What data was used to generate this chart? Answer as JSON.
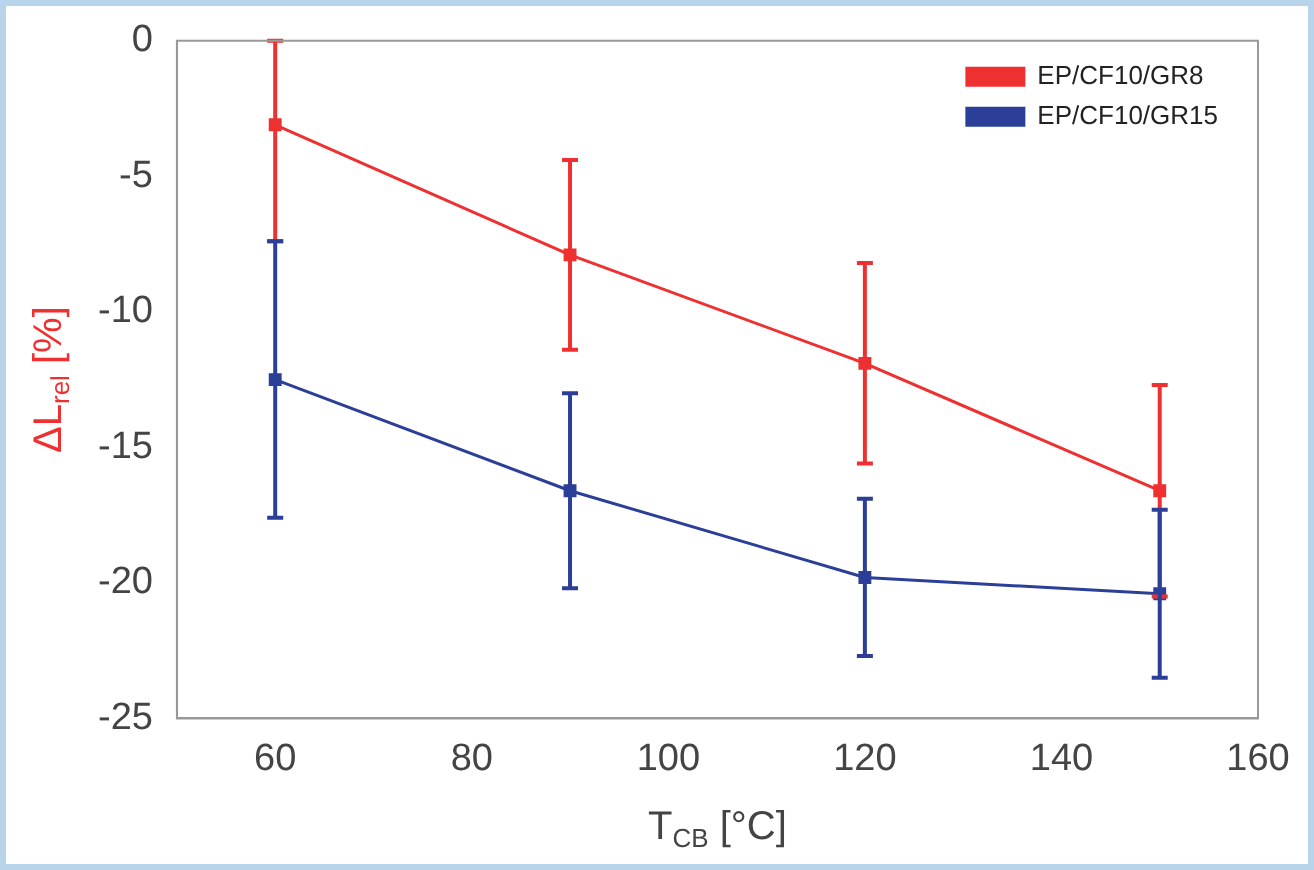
{
  "chart_data": {
    "type": "line",
    "xlabel": "T$_{CB}$ [°C]",
    "ylabel": "ΔL$_{rel}$ [%]",
    "x": [
      60,
      90,
      120,
      150
    ],
    "series": [
      {
        "name": "EP/CF10/GR8",
        "color": "#ee3030",
        "values": [
          -3.1,
          -7.9,
          -11.9,
          -16.6
        ],
        "errors": [
          [
            -7.4,
            0
          ],
          3.5,
          3.7,
          3.9
        ]
      },
      {
        "name": "EP/CF10/GR15",
        "color": "#2b3f99",
        "values": [
          -12.5,
          -16.6,
          -19.8,
          -20.4
        ],
        "errors": [
          5.1,
          3.6,
          2.9,
          3.1
        ]
      }
    ],
    "xlim": [
      50,
      160
    ],
    "xticks": [
      60,
      80,
      100,
      120,
      140,
      160
    ],
    "ylim": [
      -25,
      0
    ],
    "yticks": [
      -25,
      -20,
      -15,
      -10,
      -5,
      0
    ],
    "grid": false,
    "legend": "top right",
    "marker": "square",
    "line_style": "solid"
  }
}
